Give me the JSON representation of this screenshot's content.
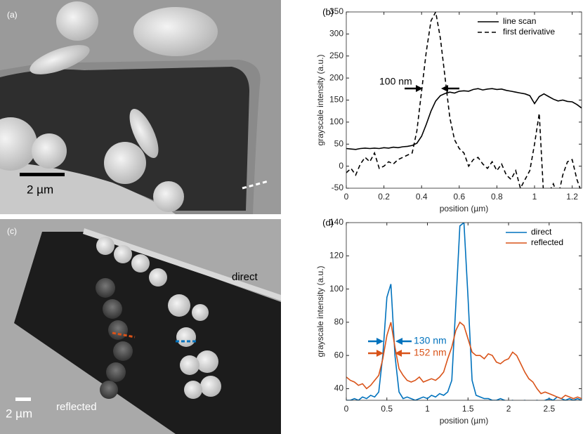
{
  "panels": [
    {
      "label": "(a)",
      "scale_bar": "2 µm"
    },
    {
      "label": "(c)",
      "scale_bar": "2 µm",
      "texts": [
        "direct",
        "reflected"
      ]
    }
  ],
  "chart_data": [
    {
      "type": "line",
      "title": "(b)",
      "x_label": "position (µm)",
      "y_label": "grayscale intensity (a.u.)",
      "xlim": [
        0,
        1.25
      ],
      "xticks": [
        0,
        0.2,
        0.4,
        0.6,
        0.8,
        1,
        1.2
      ],
      "ylim": [
        -50,
        350
      ],
      "yticks": [
        -50,
        0,
        50,
        100,
        150,
        200,
        250,
        300,
        350
      ],
      "legend": "upper right",
      "annotations": [
        {
          "text": "100 nm",
          "color": "#000000"
        }
      ],
      "x": [
        0,
        0.025,
        0.05,
        0.075,
        0.1,
        0.125,
        0.15,
        0.175,
        0.2,
        0.225,
        0.25,
        0.275,
        0.3,
        0.325,
        0.35,
        0.375,
        0.4,
        0.425,
        0.45,
        0.475,
        0.5,
        0.525,
        0.55,
        0.575,
        0.6,
        0.625,
        0.65,
        0.675,
        0.7,
        0.725,
        0.75,
        0.775,
        0.8,
        0.825,
        0.85,
        0.875,
        0.9,
        0.925,
        0.95,
        0.975,
        1,
        1.025,
        1.05,
        1.075,
        1.1,
        1.125,
        1.15,
        1.175,
        1.2,
        1.225,
        1.25
      ],
      "series": [
        {
          "name": "line scan",
          "color": "#000000",
          "linestyle": "solid",
          "values": [
            40,
            39,
            38,
            40,
            41,
            40,
            41,
            40,
            42,
            41,
            43,
            42,
            44,
            45,
            47,
            52,
            68,
            95,
            125,
            148,
            160,
            165,
            168,
            166,
            170,
            171,
            170,
            174,
            176,
            173,
            175,
            176,
            174,
            175,
            172,
            170,
            168,
            166,
            164,
            160,
            142,
            158,
            164,
            158,
            152,
            148,
            150,
            147,
            146,
            140,
            132
          ]
        },
        {
          "name": "first derivative",
          "color": "#000000",
          "linestyle": "dashed",
          "values": [
            -15,
            -5,
            -20,
            5,
            20,
            10,
            30,
            -5,
            0,
            10,
            5,
            15,
            20,
            25,
            30,
            80,
            170,
            260,
            330,
            350,
            290,
            200,
            110,
            60,
            40,
            30,
            0,
            15,
            20,
            5,
            -5,
            10,
            -10,
            5,
            -20,
            -30,
            -10,
            -50,
            -30,
            -10,
            50,
            120,
            -80,
            -60,
            -40,
            -70,
            -20,
            10,
            15,
            -30,
            -60
          ]
        }
      ]
    },
    {
      "type": "line",
      "title": "(d)",
      "x_label": "position (µm)",
      "y_label": "grayscale intensity (a.u.)",
      "xlim": [
        0,
        2.9
      ],
      "xticks": [
        0,
        0.5,
        1,
        1.5,
        2,
        2.5
      ],
      "ylim": [
        33,
        140
      ],
      "yticks": [
        40,
        60,
        80,
        100,
        120,
        140
      ],
      "legend": "upper right",
      "annotations": [
        {
          "text": "130 nm",
          "color": "#0072bd"
        },
        {
          "text": "152 nm",
          "color": "#d95319"
        }
      ],
      "x": [
        0,
        0.05,
        0.1,
        0.15,
        0.2,
        0.25,
        0.3,
        0.35,
        0.4,
        0.45,
        0.5,
        0.55,
        0.6,
        0.65,
        0.7,
        0.75,
        0.8,
        0.85,
        0.9,
        0.95,
        1,
        1.05,
        1.1,
        1.15,
        1.2,
        1.25,
        1.3,
        1.35,
        1.4,
        1.45,
        1.5,
        1.55,
        1.6,
        1.65,
        1.7,
        1.75,
        1.8,
        1.85,
        1.9,
        1.95,
        2,
        2.05,
        2.1,
        2.15,
        2.2,
        2.25,
        2.3,
        2.35,
        2.4,
        2.45,
        2.5,
        2.55,
        2.6,
        2.65,
        2.7,
        2.75,
        2.8,
        2.85,
        2.9
      ],
      "series": [
        {
          "name": "direct",
          "color": "#0072bd",
          "linestyle": "solid",
          "values": [
            33,
            33,
            34,
            33,
            35,
            34,
            36,
            35,
            38,
            60,
            95,
            103,
            60,
            38,
            34,
            35,
            34,
            33,
            34,
            35,
            34,
            36,
            35,
            37,
            36,
            38,
            45,
            90,
            138,
            140,
            95,
            45,
            36,
            35,
            34,
            34,
            33,
            33,
            34,
            33,
            32,
            33,
            31,
            32,
            33,
            31,
            32,
            33,
            32,
            33,
            34,
            33,
            35,
            34,
            33,
            34,
            33,
            34,
            33
          ]
        },
        {
          "name": "reflected",
          "color": "#d95319",
          "linestyle": "solid",
          "values": [
            47,
            45,
            44,
            42,
            43,
            40,
            42,
            45,
            48,
            58,
            72,
            80,
            65,
            52,
            48,
            45,
            44,
            45,
            47,
            44,
            45,
            46,
            45,
            47,
            50,
            58,
            65,
            75,
            80,
            78,
            70,
            62,
            60,
            60,
            58,
            61,
            60,
            56,
            55,
            57,
            58,
            62,
            60,
            55,
            50,
            46,
            44,
            40,
            37,
            38,
            37,
            36,
            35,
            34,
            36,
            35,
            34,
            35,
            34
          ]
        }
      ]
    }
  ]
}
